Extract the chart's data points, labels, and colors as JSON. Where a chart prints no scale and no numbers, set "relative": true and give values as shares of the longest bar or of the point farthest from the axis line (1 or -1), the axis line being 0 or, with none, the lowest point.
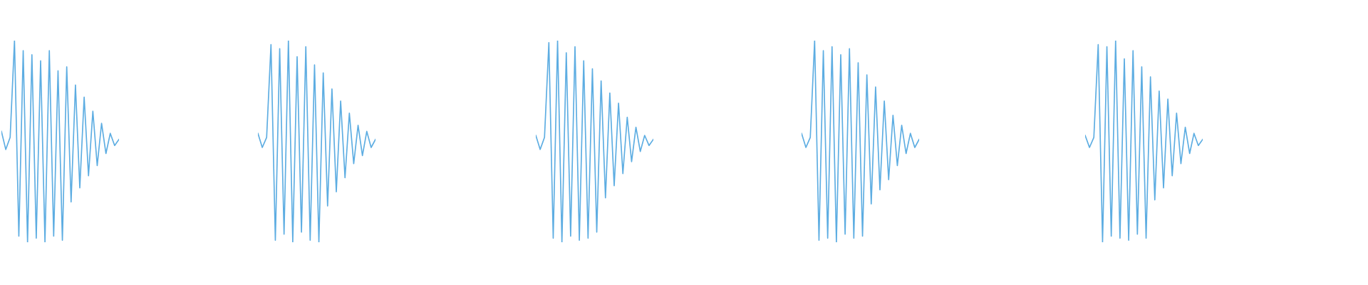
{
  "chart_data": [
    {
      "type": "line",
      "relative": true,
      "categories": [
        null,
        null,
        null,
        null,
        null,
        null,
        null,
        null,
        null,
        null,
        null,
        null,
        null,
        null,
        null,
        null,
        null,
        null,
        null,
        null,
        null,
        null,
        null,
        null,
        null,
        null,
        null,
        null
      ],
      "series": [
        {
          "color": "#5dade2",
          "values": [
            0.55,
            0.46,
            0.52,
            1.0,
            0.03,
            0.95,
            0.0,
            0.93,
            0.02,
            0.9,
            0.0,
            0.95,
            0.03,
            0.85,
            0.01,
            0.87,
            0.2,
            0.78,
            0.27,
            0.72,
            0.33,
            0.65,
            0.38,
            0.59,
            0.44,
            0.54,
            0.48,
            0.51
          ]
        }
      ]
    },
    {
      "type": "line",
      "relative": true,
      "categories": [
        null,
        null,
        null,
        null,
        null,
        null,
        null,
        null,
        null,
        null,
        null,
        null,
        null,
        null,
        null,
        null,
        null,
        null,
        null,
        null,
        null,
        null,
        null,
        null,
        null,
        null,
        null,
        null
      ],
      "series": [
        {
          "color": "#5dade2",
          "values": [
            0.54,
            0.47,
            0.52,
            0.98,
            0.01,
            0.96,
            0.04,
            1.0,
            0.0,
            0.92,
            0.05,
            0.97,
            0.01,
            0.88,
            0.0,
            0.84,
            0.18,
            0.76,
            0.25,
            0.7,
            0.32,
            0.64,
            0.39,
            0.58,
            0.43,
            0.55,
            0.47,
            0.51
          ]
        }
      ]
    },
    {
      "type": "line",
      "relative": true,
      "categories": [
        null,
        null,
        null,
        null,
        null,
        null,
        null,
        null,
        null,
        null,
        null,
        null,
        null,
        null,
        null,
        null,
        null,
        null,
        null,
        null,
        null,
        null,
        null,
        null,
        null,
        null,
        null,
        null
      ],
      "series": [
        {
          "color": "#5dade2",
          "values": [
            0.53,
            0.46,
            0.52,
            0.99,
            0.02,
            1.0,
            0.0,
            0.94,
            0.03,
            0.97,
            0.01,
            0.9,
            0.02,
            0.86,
            0.05,
            0.8,
            0.22,
            0.74,
            0.28,
            0.69,
            0.34,
            0.62,
            0.4,
            0.57,
            0.45,
            0.53,
            0.48,
            0.51
          ]
        }
      ]
    },
    {
      "type": "line",
      "relative": true,
      "categories": [
        null,
        null,
        null,
        null,
        null,
        null,
        null,
        null,
        null,
        null,
        null,
        null,
        null,
        null,
        null,
        null,
        null,
        null,
        null,
        null,
        null,
        null,
        null,
        null,
        null,
        null,
        null,
        null
      ],
      "series": [
        {
          "color": "#5dade2",
          "values": [
            0.54,
            0.47,
            0.52,
            1.0,
            0.01,
            0.95,
            0.02,
            0.97,
            0.0,
            0.93,
            0.04,
            0.96,
            0.02,
            0.89,
            0.03,
            0.83,
            0.19,
            0.77,
            0.26,
            0.7,
            0.31,
            0.63,
            0.38,
            0.58,
            0.44,
            0.54,
            0.47,
            0.51
          ]
        }
      ]
    },
    {
      "type": "line",
      "relative": true,
      "categories": [
        null,
        null,
        null,
        null,
        null,
        null,
        null,
        null,
        null,
        null,
        null,
        null,
        null,
        null,
        null,
        null,
        null,
        null,
        null,
        null,
        null,
        null,
        null,
        null,
        null,
        null,
        null,
        null
      ],
      "series": [
        {
          "color": "#5dade2",
          "values": [
            0.53,
            0.47,
            0.52,
            0.98,
            0.0,
            0.97,
            0.03,
            1.0,
            0.02,
            0.91,
            0.01,
            0.95,
            0.04,
            0.87,
            0.02,
            0.82,
            0.21,
            0.75,
            0.27,
            0.71,
            0.33,
            0.64,
            0.39,
            0.57,
            0.44,
            0.54,
            0.48,
            0.51
          ]
        }
      ]
    }
  ]
}
